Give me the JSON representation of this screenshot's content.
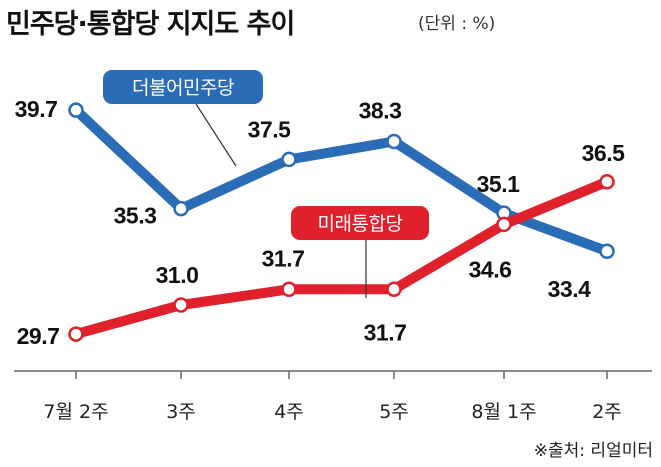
{
  "title": "민주당·통합당 지지도 추이",
  "unit": "(단위 : %)",
  "source": "※출처: 리얼미터",
  "chart_data": {
    "type": "line",
    "categories": [
      "7월 2주",
      "3주",
      "4주",
      "5주",
      "8월 1주",
      "2주"
    ],
    "series": [
      {
        "name": "더불어민주당",
        "color": "#2a6cb5",
        "values": [
          39.7,
          35.3,
          37.5,
          38.3,
          35.1,
          33.4
        ]
      },
      {
        "name": "미래통합당",
        "color": "#e0202a",
        "values": [
          29.7,
          31.0,
          31.7,
          31.7,
          34.6,
          36.5
        ]
      }
    ],
    "title": "민주당·통합당 지지도 추이",
    "xlabel": "",
    "ylabel": "",
    "ylim": [
      28.9,
      40.6
    ],
    "grid": false,
    "legend": "inline labels"
  }
}
